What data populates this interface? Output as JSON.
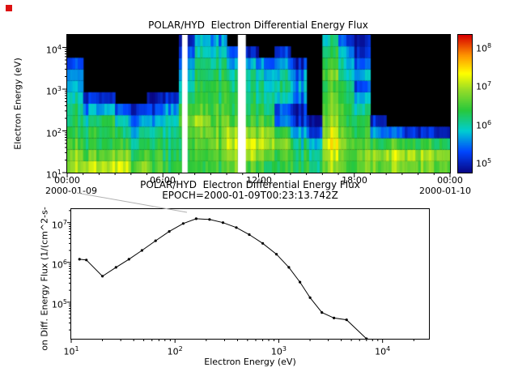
{
  "chart_data": [
    {
      "type": "heatmap",
      "title": "POLAR/HYD  Electron Differential Energy Flux",
      "ylabel": "Electron Energy (eV)",
      "x_tick_labels": [
        "00:00",
        "06:00",
        "12:00",
        "18:00",
        "00:00"
      ],
      "x_date_left": "2000-01-09",
      "x_date_right": "2000-01-10",
      "x_axis_hours": {
        "min": 0,
        "max": 24,
        "major_tick_every_hours": 6,
        "minor_tick_every_hours": 1
      },
      "y_axis": {
        "log_min": 1,
        "log_max": 4.301,
        "tick_exponents": [
          1,
          2,
          3,
          4
        ]
      },
      "colorbar": {
        "tick_exponents": [
          5,
          6,
          7,
          8
        ],
        "log_min": 4.7,
        "log_max": 8.3,
        "stops": [
          [
            0,
            8,
            8,
            135
          ],
          [
            0.15,
            0,
            70,
            255
          ],
          [
            0.3,
            0,
            205,
            210
          ],
          [
            0.45,
            40,
            200,
            60
          ],
          [
            0.6,
            150,
            220,
            40
          ],
          [
            0.72,
            255,
            255,
            0
          ],
          [
            0.85,
            255,
            150,
            0
          ],
          [
            1,
            215,
            0,
            0
          ]
        ]
      },
      "spectrogram": {
        "time_bins_hours": 24,
        "energy_bin_centers_ev": [
          14,
          26,
          49,
          92,
          173,
          326,
          614,
          1156,
          2178,
          4103,
          7730,
          14563
        ],
        "values_log10_flux": [
          [
            7.0,
            6.9,
            7.0,
            7.0,
            6.6,
            6.5,
            6.3,
            6.3,
            6.5,
            6.4,
            6.6,
            6.5,
            6.4,
            6.3,
            6.2,
            6.2,
            6.8,
            6.5,
            6.6,
            6.7,
            6.8,
            6.8,
            6.7,
            6.6
          ],
          [
            6.9,
            6.5,
            6.6,
            6.7,
            6.3,
            6.4,
            6.2,
            6.2,
            6.5,
            6.5,
            6.8,
            6.9,
            6.7,
            6.4,
            6.2,
            6.1,
            7.0,
            6.6,
            6.7,
            6.9,
            7.0,
            7.0,
            6.9,
            6.8
          ],
          [
            6.6,
            6.2,
            6.2,
            6.3,
            6.0,
            6.2,
            6.1,
            6.2,
            6.6,
            6.7,
            7.0,
            7.1,
            7.0,
            6.6,
            6.0,
            5.8,
            7.2,
            6.7,
            6.5,
            6.4,
            6.5,
            6.4,
            6.3,
            6.2
          ],
          [
            6.4,
            6.2,
            6.2,
            6.1,
            5.8,
            6.0,
            6.0,
            6.4,
            6.8,
            6.6,
            6.8,
            6.8,
            6.9,
            6.3,
            5.6,
            5.2,
            7.0,
            6.5,
            6.3,
            5.6,
            5.4,
            5.2,
            5.0,
            4.9
          ],
          [
            6.3,
            6.0,
            6.2,
            5.8,
            5.4,
            5.6,
            5.9,
            6.5,
            7.0,
            6.5,
            6.5,
            6.4,
            6.5,
            5.4,
            5.0,
            4.8,
            6.8,
            6.4,
            6.2,
            5.0,
            0,
            0,
            0,
            0
          ],
          [
            6.2,
            5.5,
            5.6,
            5.2,
            5.0,
            5.2,
            5.5,
            6.3,
            6.6,
            6.4,
            6.3,
            6.2,
            6.2,
            5.2,
            4.9,
            0,
            6.6,
            6.3,
            6.0,
            0,
            0,
            0,
            0,
            0
          ],
          [
            6.0,
            5.0,
            4.9,
            0,
            0,
            4.8,
            5.0,
            6.0,
            6.4,
            6.3,
            6.2,
            6.1,
            6.1,
            5.8,
            5.4,
            0,
            6.5,
            6.2,
            5.6,
            0,
            0,
            0,
            0,
            0
          ],
          [
            5.8,
            0,
            0,
            0,
            0,
            0,
            0,
            5.8,
            6.4,
            6.3,
            6.1,
            6.0,
            6.0,
            6.0,
            5.6,
            0,
            6.4,
            6.2,
            5.2,
            0,
            0,
            0,
            0,
            0
          ],
          [
            5.6,
            0,
            0,
            0,
            0,
            0,
            0,
            5.6,
            6.3,
            6.2,
            6.0,
            5.9,
            5.8,
            5.8,
            5.4,
            0,
            6.6,
            6.0,
            5.6,
            0,
            0,
            0,
            0,
            0
          ],
          [
            5.3,
            0,
            0,
            0,
            0,
            0,
            0,
            5.4,
            6.2,
            6.0,
            5.6,
            5.6,
            5.4,
            5.5,
            5.0,
            0,
            6.4,
            5.8,
            5.3,
            0,
            0,
            0,
            0,
            0
          ],
          [
            0,
            0,
            0,
            0,
            0,
            0,
            0,
            5.1,
            6.0,
            5.8,
            5.2,
            5.0,
            0,
            5.0,
            0,
            0,
            6.2,
            5.6,
            5.0,
            0,
            0,
            0,
            0,
            0
          ],
          [
            0,
            0,
            0,
            0,
            0,
            0,
            0,
            4.8,
            5.8,
            5.5,
            0,
            0,
            0,
            0,
            0,
            0,
            6.0,
            5.2,
            4.8,
            0,
            0,
            0,
            0,
            0
          ]
        ],
        "no_data_gaps_hours": [
          [
            7.2,
            7.55
          ],
          [
            10.7,
            11.2
          ]
        ],
        "below_threshold_color": "#000000",
        "no_data_color": "#ffffff"
      }
    },
    {
      "type": "line",
      "title": "POLAR/HYD  Electron Differential Energy Flux",
      "subtitle": "EPOCH=2000-01-09T00:23:13.742Z",
      "xlabel": "Electron Energy (eV)",
      "ylabel_visible": "on Diff. Energy Flux (1/(cm^2-s-",
      "x_axis": {
        "log_min": 1,
        "log_max": 4.447,
        "tick_exponents": [
          1,
          2,
          3,
          4
        ]
      },
      "y_axis": {
        "log_min": 4.08,
        "log_max": 7.34,
        "tick_exponents": [
          5,
          6,
          7
        ]
      },
      "marker": "dot",
      "line_color": "#000000",
      "series": {
        "energy_ev": [
          12,
          14,
          20,
          27,
          36,
          48,
          65,
          88,
          120,
          160,
          215,
          290,
          390,
          520,
          700,
          950,
          1250,
          1600,
          2000,
          2600,
          3400,
          4500,
          7000
        ],
        "flux": [
          1200000.0,
          1150000.0,
          450000.0,
          750000.0,
          1200000.0,
          2000000.0,
          3500000.0,
          6000000.0,
          9500000.0,
          12500000.0,
          12000000.0,
          10000000.0,
          7500000.0,
          5000000.0,
          3000000.0,
          1600000.0,
          750000.0,
          320000.0,
          130000.0,
          55000.0,
          40000.0,
          36000.0,
          12000.0
        ]
      }
    }
  ]
}
